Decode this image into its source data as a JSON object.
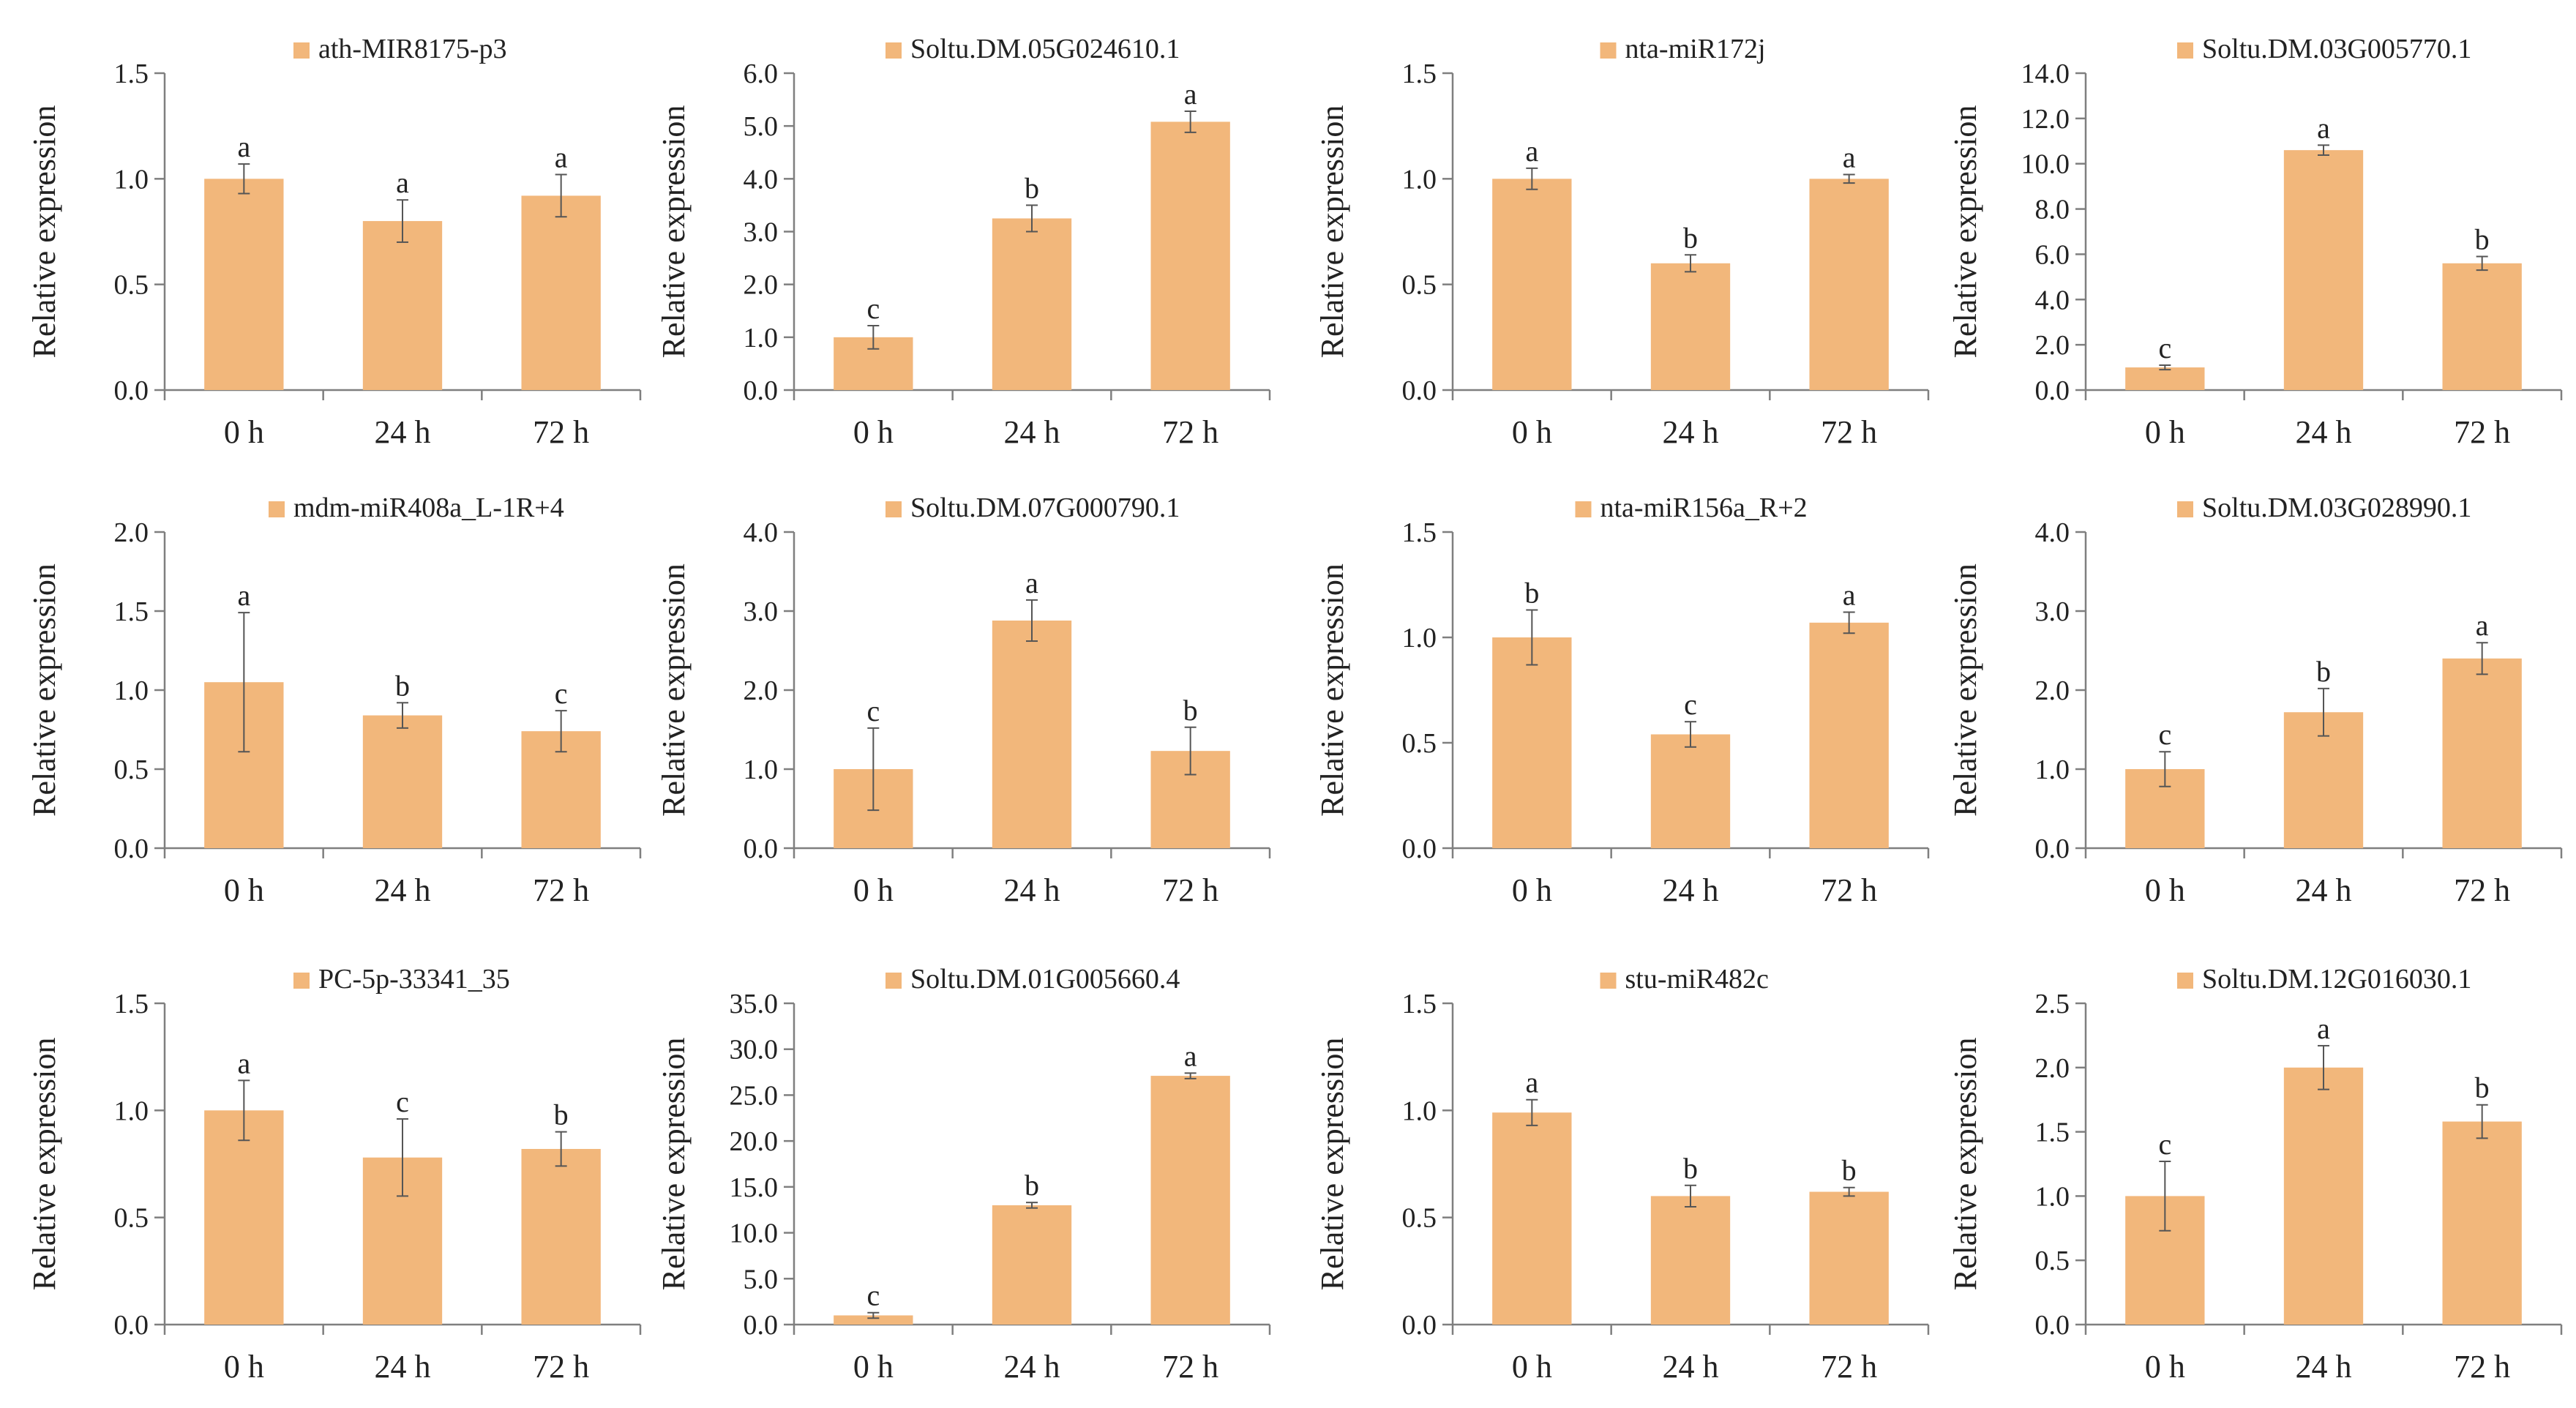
{
  "figure": {
    "bar_color": "#F2B77B",
    "axis_color": "#7F7F7F",
    "error_color": "#555555"
  },
  "chart_data": [
    {
      "type": "bar",
      "title": "ath-MIR8175-p3",
      "ylabel": "Relative expression",
      "xlabel": "",
      "categories": [
        "0 h",
        "24 h",
        "72 h"
      ],
      "values": [
        1.0,
        0.8,
        0.92
      ],
      "errors": [
        0.07,
        0.1,
        0.1
      ],
      "letters": [
        "a",
        "a",
        "a"
      ],
      "ylim": [
        0,
        1.5
      ],
      "yticks": [
        "0.0",
        "0.5",
        "1.0",
        "1.5"
      ],
      "grid": false,
      "legend": "top"
    },
    {
      "type": "bar",
      "title": "Soltu.DM.05G024610.1",
      "ylabel": "Relative expression",
      "xlabel": "",
      "categories": [
        "0 h",
        "24 h",
        "72 h"
      ],
      "values": [
        1.0,
        3.25,
        5.08
      ],
      "errors": [
        0.22,
        0.25,
        0.2
      ],
      "letters": [
        "c",
        "b",
        "a"
      ],
      "ylim": [
        0,
        6
      ],
      "yticks": [
        "0.0",
        "1.0",
        "2.0",
        "3.0",
        "4.0",
        "5.0",
        "6.0"
      ],
      "grid": false,
      "legend": "top"
    },
    {
      "type": "bar",
      "title": "nta-miR172j",
      "ylabel": "Relative expression",
      "xlabel": "",
      "categories": [
        "0 h",
        "24 h",
        "72 h"
      ],
      "values": [
        1.0,
        0.6,
        1.0
      ],
      "errors": [
        0.05,
        0.04,
        0.02
      ],
      "letters": [
        "a",
        "b",
        "a"
      ],
      "ylim": [
        0,
        1.5
      ],
      "yticks": [
        "0.0",
        "0.5",
        "1.0",
        "1.5"
      ],
      "grid": false,
      "legend": "top"
    },
    {
      "type": "bar",
      "title": "Soltu.DM.03G005770.1",
      "ylabel": "Relative expression",
      "xlabel": "",
      "categories": [
        "0 h",
        "24 h",
        "72 h"
      ],
      "values": [
        1.0,
        10.6,
        5.6
      ],
      "errors": [
        0.1,
        0.22,
        0.3
      ],
      "letters": [
        "c",
        "a",
        "b"
      ],
      "ylim": [
        0,
        14
      ],
      "yticks": [
        "0.0",
        "2.0",
        "4.0",
        "6.0",
        "8.0",
        "10.0",
        "12.0",
        "14.0"
      ],
      "grid": false,
      "legend": "top"
    },
    {
      "type": "bar",
      "title": "mdm-miR408a_L-1R+4",
      "ylabel": "Relative expression",
      "xlabel": "",
      "categories": [
        "0 h",
        "24 h",
        "72 h"
      ],
      "values": [
        1.05,
        0.84,
        0.74
      ],
      "errors": [
        0.44,
        0.08,
        0.13
      ],
      "letters": [
        "a",
        "b",
        "c"
      ],
      "ylim": [
        0,
        2
      ],
      "yticks": [
        "0.0",
        "0.5",
        "1.0",
        "1.5",
        "2.0"
      ],
      "grid": false,
      "legend": "top"
    },
    {
      "type": "bar",
      "title": "Soltu.DM.07G000790.1",
      "ylabel": "Relative expression",
      "xlabel": "",
      "categories": [
        "0 h",
        "24 h",
        "72 h"
      ],
      "values": [
        1.0,
        2.88,
        1.23
      ],
      "errors": [
        0.52,
        0.26,
        0.3
      ],
      "letters": [
        "c",
        "a",
        "b"
      ],
      "ylim": [
        0,
        4
      ],
      "yticks": [
        "0.0",
        "1.0",
        "2.0",
        "3.0",
        "4.0"
      ],
      "grid": false,
      "legend": "top"
    },
    {
      "type": "bar",
      "title": "nta-miR156a_R+2",
      "ylabel": "Relative expression",
      "xlabel": "",
      "categories": [
        "0 h",
        "24 h",
        "72 h"
      ],
      "values": [
        1.0,
        0.54,
        1.07
      ],
      "errors": [
        0.13,
        0.06,
        0.05
      ],
      "letters": [
        "b",
        "c",
        "a"
      ],
      "ylim": [
        0,
        1.5
      ],
      "yticks": [
        "0.0",
        "0.5",
        "1.0",
        "1.5"
      ],
      "grid": false,
      "legend": "top"
    },
    {
      "type": "bar",
      "title": "Soltu.DM.03G028990.1",
      "ylabel": "Relative expression",
      "xlabel": "",
      "categories": [
        "0 h",
        "24 h",
        "72 h"
      ],
      "values": [
        1.0,
        1.72,
        2.4
      ],
      "errors": [
        0.22,
        0.3,
        0.2
      ],
      "letters": [
        "c",
        "b",
        "a"
      ],
      "ylim": [
        0,
        4
      ],
      "yticks": [
        "0.0",
        "1.0",
        "2.0",
        "3.0",
        "4.0"
      ],
      "grid": false,
      "legend": "top"
    },
    {
      "type": "bar",
      "title": "PC-5p-33341_35",
      "ylabel": "Relative expression",
      "xlabel": "",
      "categories": [
        "0 h",
        "24 h",
        "72 h"
      ],
      "values": [
        1.0,
        0.78,
        0.82
      ],
      "errors": [
        0.14,
        0.18,
        0.08
      ],
      "letters": [
        "a",
        "c",
        "b"
      ],
      "ylim": [
        0,
        1.5
      ],
      "yticks": [
        "0.0",
        "0.5",
        "1.0",
        "1.5"
      ],
      "grid": false,
      "legend": "top"
    },
    {
      "type": "bar",
      "title": "Soltu.DM.01G005660.4",
      "ylabel": "Relative expression",
      "xlabel": "",
      "categories": [
        "0 h",
        "24 h",
        "72 h"
      ],
      "values": [
        1.0,
        13.0,
        27.1
      ],
      "errors": [
        0.3,
        0.3,
        0.3
      ],
      "letters": [
        "c",
        "b",
        "a"
      ],
      "ylim": [
        0,
        35
      ],
      "yticks": [
        "0.0",
        "5.0",
        "10.0",
        "15.0",
        "20.0",
        "25.0",
        "30.0",
        "35.0"
      ],
      "grid": false,
      "legend": "top"
    },
    {
      "type": "bar",
      "title": "stu-miR482c",
      "ylabel": "Relative expression",
      "xlabel": "",
      "categories": [
        "0 h",
        "24 h",
        "72 h"
      ],
      "values": [
        0.99,
        0.6,
        0.62
      ],
      "errors": [
        0.06,
        0.05,
        0.02
      ],
      "letters": [
        "a",
        "b",
        "b"
      ],
      "ylim": [
        0,
        1.5
      ],
      "yticks": [
        "0.0",
        "0.5",
        "1.0",
        "1.5"
      ],
      "grid": false,
      "legend": "top"
    },
    {
      "type": "bar",
      "title": "Soltu.DM.12G016030.1",
      "ylabel": "Relative expression",
      "xlabel": "",
      "categories": [
        "0 h",
        "24 h",
        "72 h"
      ],
      "values": [
        1.0,
        2.0,
        1.58
      ],
      "errors": [
        0.27,
        0.17,
        0.13
      ],
      "letters": [
        "c",
        "a",
        "b"
      ],
      "ylim": [
        0,
        2.5
      ],
      "yticks": [
        "0.0",
        "0.5",
        "1.0",
        "1.5",
        "2.0",
        "2.5"
      ],
      "grid": false,
      "legend": "top"
    }
  ]
}
